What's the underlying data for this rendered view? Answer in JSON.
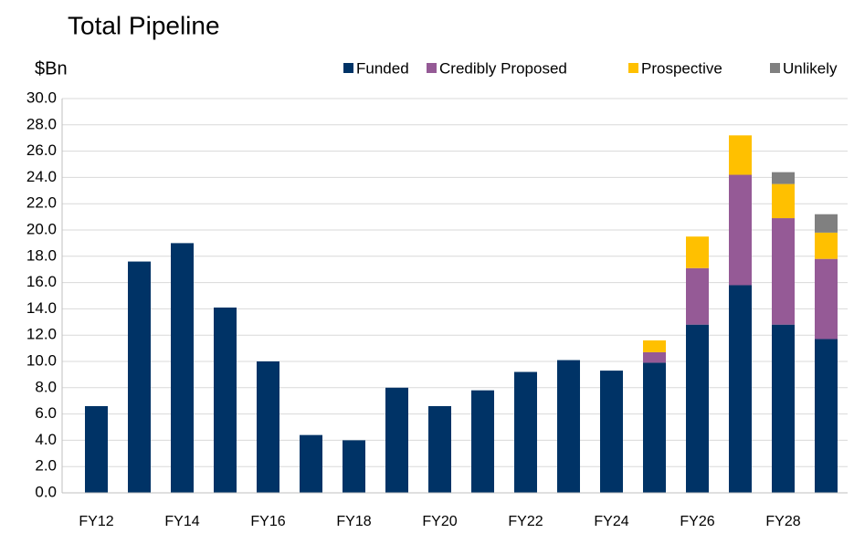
{
  "chart_data": {
    "type": "stacked_bar",
    "title": "Total Pipeline",
    "y_label": "$Bn",
    "categories": [
      "FY12",
      null,
      "FY14",
      null,
      "FY16",
      null,
      "FY18",
      null,
      "FY20",
      null,
      "FY22",
      null,
      "FY24",
      null,
      "FY26",
      null,
      "FY28",
      null
    ],
    "series": [
      {
        "name": "Funded",
        "color": "#003366",
        "values": [
          6.6,
          17.6,
          19.0,
          14.1,
          10.0,
          4.4,
          4.0,
          8.0,
          6.6,
          7.8,
          9.2,
          10.1,
          9.3,
          9.9,
          12.8,
          15.8,
          12.8,
          11.7
        ]
      },
      {
        "name": "Credibly Proposed",
        "color": "#955a96",
        "values": [
          0,
          0,
          0,
          0,
          0,
          0,
          0,
          0,
          0,
          0,
          0,
          0,
          0,
          0.8,
          4.3,
          8.4,
          8.1,
          6.1
        ]
      },
      {
        "name": "Prospective",
        "color": "#ffc000",
        "values": [
          0,
          0,
          0,
          0,
          0,
          0,
          0,
          0,
          0,
          0,
          0,
          0,
          0,
          0.9,
          2.4,
          3.0,
          2.6,
          2.0
        ]
      },
      {
        "name": "Unlikely",
        "color": "#808080",
        "values": [
          0,
          0,
          0,
          0,
          0,
          0,
          0,
          0,
          0,
          0,
          0,
          0,
          0,
          0,
          0,
          0,
          0.9,
          1.4
        ]
      }
    ],
    "ylim": [
      0,
      30
    ],
    "yticks": [
      {
        "value": 0,
        "label": "0.0"
      },
      {
        "value": 2,
        "label": "2.0"
      },
      {
        "value": 4,
        "label": "4.0"
      },
      {
        "value": 6,
        "label": "6.0"
      },
      {
        "value": 8,
        "label": "8.0"
      },
      {
        "value": 10,
        "label": "10.0"
      },
      {
        "value": 12,
        "label": "12.0"
      },
      {
        "value": 14,
        "label": "14.0"
      },
      {
        "value": 16,
        "label": "16.0"
      },
      {
        "value": 18,
        "label": "18.0"
      },
      {
        "value": 20,
        "label": "20.0"
      },
      {
        "value": 22,
        "label": "22.0"
      },
      {
        "value": 24,
        "label": "24.0"
      },
      {
        "value": 26,
        "label": "26.0"
      },
      {
        "value": 28,
        "label": "28.0"
      },
      {
        "value": 30,
        "label": "30.0"
      }
    ],
    "grid": true,
    "legend": "top-right"
  }
}
